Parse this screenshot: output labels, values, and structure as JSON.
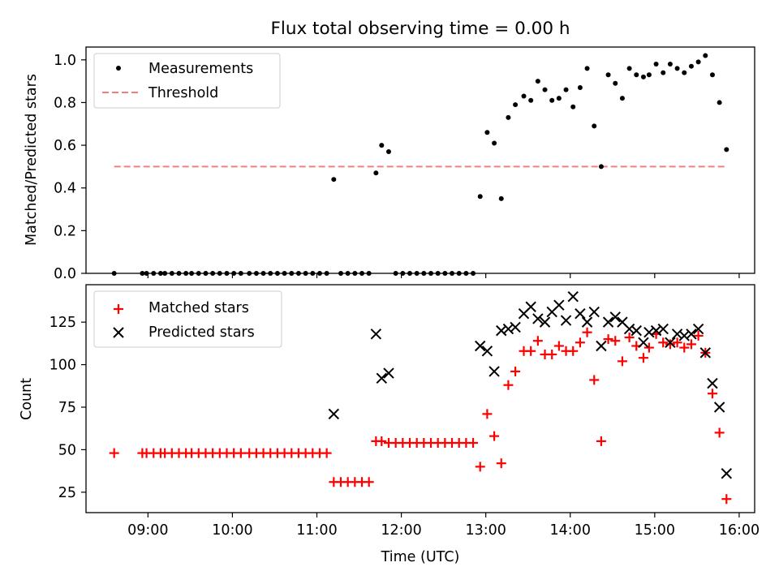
{
  "title": "Flux total observing time = 0.00 h",
  "chart_data": [
    {
      "type": "scatter",
      "ylabel": "Matched/Predicted stars",
      "ylim": [
        0,
        1.06
      ],
      "yticks": [
        0.0,
        0.2,
        0.4,
        0.6,
        0.8,
        1.0
      ],
      "ytick_labels": [
        "0.0",
        "0.2",
        "0.4",
        "0.6",
        "0.8",
        "1.0"
      ],
      "legend_position": "top-left",
      "legend": [
        {
          "label": "Measurements",
          "marker": "dot",
          "color": "#000000"
        },
        {
          "label": "Threshold",
          "marker": "dashed-line",
          "color": "#f08080"
        }
      ],
      "threshold": {
        "value": 0.5,
        "x_start": "08:36",
        "x_end": "15:51"
      },
      "series": [
        {
          "name": "Measurements",
          "x": [
            "08:36",
            "08:56",
            "08:59",
            "09:04",
            "09:09",
            "09:12",
            "09:17",
            "09:22",
            "09:27",
            "09:31",
            "09:36",
            "09:41",
            "09:46",
            "09:51",
            "09:56",
            "10:01",
            "10:06",
            "10:12",
            "10:17",
            "10:22",
            "10:27",
            "10:32",
            "10:37",
            "10:42",
            "10:47",
            "10:52",
            "10:57",
            "11:02",
            "11:07",
            "11:12",
            "11:17",
            "11:22",
            "11:27",
            "11:32",
            "11:37",
            "11:42",
            "11:46",
            "11:51",
            "11:56",
            "12:01",
            "12:06",
            "12:11",
            "12:16",
            "12:21",
            "12:26",
            "12:31",
            "12:36",
            "12:41",
            "12:46",
            "12:51",
            "12:56",
            "13:01",
            "13:06",
            "13:11",
            "13:16",
            "13:21",
            "13:27",
            "13:32",
            "13:37",
            "13:42",
            "13:47",
            "13:52",
            "13:57",
            "14:02",
            "14:07",
            "14:12",
            "14:17",
            "14:22",
            "14:27",
            "14:32",
            "14:37",
            "14:42",
            "14:47",
            "14:52",
            "14:56",
            "15:01",
            "15:06",
            "15:11",
            "15:16",
            "15:21",
            "15:26",
            "15:31",
            "15:36",
            "15:41",
            "15:46",
            "15:51"
          ],
          "y": [
            0.0,
            0.0,
            0.0,
            0.0,
            0.0,
            0.0,
            0.0,
            0.0,
            0.0,
            0.0,
            0.0,
            0.0,
            0.0,
            0.0,
            0.0,
            0.0,
            0.0,
            0.0,
            0.0,
            0.0,
            0.0,
            0.0,
            0.0,
            0.0,
            0.0,
            0.0,
            0.0,
            0.0,
            0.0,
            0.44,
            0.0,
            0.0,
            0.0,
            0.0,
            0.0,
            0.47,
            0.6,
            0.57,
            0.0,
            0.0,
            0.0,
            0.0,
            0.0,
            0.0,
            0.0,
            0.0,
            0.0,
            0.0,
            0.0,
            0.0,
            0.36,
            0.66,
            0.61,
            0.35,
            0.73,
            0.79,
            0.83,
            0.81,
            0.9,
            0.86,
            0.81,
            0.82,
            0.86,
            0.78,
            0.87,
            0.96,
            0.69,
            0.5,
            0.93,
            0.89,
            0.82,
            0.96,
            0.93,
            0.92,
            0.93,
            0.98,
            0.94,
            0.98,
            0.96,
            0.94,
            0.97,
            0.99,
            1.02,
            0.93,
            0.8,
            0.58
          ]
        }
      ]
    },
    {
      "type": "scatter",
      "xlabel": "Time (UTC)",
      "ylabel": "Count",
      "xlim": [
        "08:16",
        "16:11"
      ],
      "xticks": [
        "09:00",
        "10:00",
        "11:00",
        "12:00",
        "13:00",
        "14:00",
        "15:00",
        "16:00"
      ],
      "ylim": [
        13,
        147
      ],
      "yticks": [
        25,
        50,
        75,
        100,
        125
      ],
      "legend_position": "top-left",
      "legend": [
        {
          "label": "Matched stars",
          "marker": "plus",
          "color": "#ff0000"
        },
        {
          "label": "Predicted stars",
          "marker": "x",
          "color": "#000000"
        }
      ],
      "series": [
        {
          "name": "Matched stars",
          "x": [
            "08:36",
            "08:56",
            "08:59",
            "09:04",
            "09:09",
            "09:12",
            "09:17",
            "09:22",
            "09:27",
            "09:31",
            "09:36",
            "09:41",
            "09:46",
            "09:51",
            "09:56",
            "10:01",
            "10:06",
            "10:12",
            "10:17",
            "10:22",
            "10:27",
            "10:32",
            "10:37",
            "10:42",
            "10:47",
            "10:52",
            "10:57",
            "11:02",
            "11:07",
            "11:12",
            "11:17",
            "11:22",
            "11:27",
            "11:32",
            "11:37",
            "11:42",
            "11:46",
            "11:51",
            "11:56",
            "12:01",
            "12:06",
            "12:11",
            "12:16",
            "12:21",
            "12:26",
            "12:31",
            "12:36",
            "12:41",
            "12:46",
            "12:51",
            "12:56",
            "13:01",
            "13:06",
            "13:11",
            "13:16",
            "13:21",
            "13:27",
            "13:32",
            "13:37",
            "13:42",
            "13:47",
            "13:52",
            "13:57",
            "14:02",
            "14:07",
            "14:12",
            "14:17",
            "14:22",
            "14:27",
            "14:32",
            "14:37",
            "14:42",
            "14:47",
            "14:52",
            "14:56",
            "15:01",
            "15:06",
            "15:11",
            "15:16",
            "15:21",
            "15:26",
            "15:31",
            "15:36",
            "15:41",
            "15:46",
            "15:51"
          ],
          "y": [
            48,
            48,
            48,
            48,
            48,
            48,
            48,
            48,
            48,
            48,
            48,
            48,
            48,
            48,
            48,
            48,
            48,
            48,
            48,
            48,
            48,
            48,
            48,
            48,
            48,
            48,
            48,
            48,
            48,
            31,
            31,
            31,
            31,
            31,
            31,
            55,
            55,
            54,
            54,
            54,
            54,
            54,
            54,
            54,
            54,
            54,
            54,
            54,
            54,
            54,
            40,
            71,
            58,
            42,
            88,
            96,
            108,
            108,
            114,
            106,
            106,
            111,
            108,
            108,
            113,
            119,
            91,
            55,
            115,
            114,
            102,
            116,
            111,
            104,
            110,
            118,
            113,
            112,
            113,
            110,
            112,
            117,
            107,
            83,
            60,
            21
          ]
        },
        {
          "name": "Predicted stars",
          "x": [
            "11:12",
            "11:42",
            "11:46",
            "11:51",
            "12:56",
            "13:01",
            "13:06",
            "13:11",
            "13:16",
            "13:21",
            "13:27",
            "13:32",
            "13:37",
            "13:42",
            "13:47",
            "13:52",
            "13:57",
            "14:02",
            "14:07",
            "14:12",
            "14:17",
            "14:22",
            "14:27",
            "14:32",
            "14:37",
            "14:42",
            "14:47",
            "14:52",
            "14:56",
            "15:01",
            "15:06",
            "15:11",
            "15:16",
            "15:21",
            "15:26",
            "15:31",
            "15:36",
            "15:41",
            "15:46",
            "15:51"
          ],
          "y": [
            71,
            118,
            92,
            95,
            111,
            108,
            96,
            120,
            121,
            122,
            130,
            134,
            127,
            125,
            131,
            135,
            126,
            140,
            130,
            125,
            131,
            111,
            125,
            128,
            125,
            121,
            120,
            113,
            119,
            120,
            121,
            113,
            118,
            117,
            118,
            121,
            107,
            89,
            75,
            36
          ]
        }
      ]
    }
  ]
}
